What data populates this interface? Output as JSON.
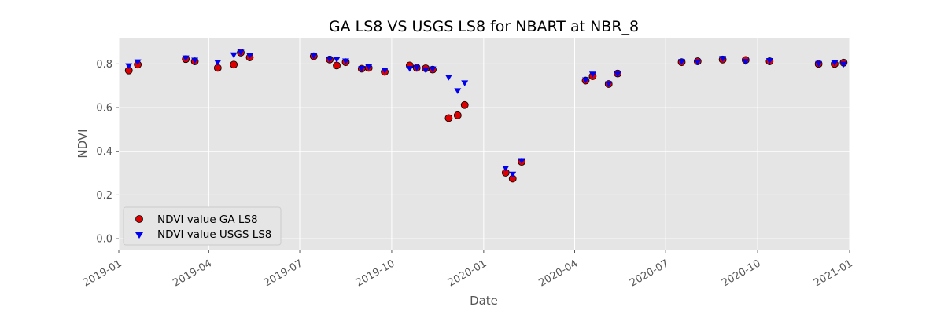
{
  "chart_data": {
    "type": "scatter",
    "title": "GA LS8 VS USGS LS8 for NBART at NBR_8",
    "xlabel": "Date",
    "ylabel": "NDVI",
    "xlim": [
      "2019-01-01",
      "2021-01-01"
    ],
    "ylim": [
      -0.05,
      0.92
    ],
    "x_ticks": [
      "2019-01",
      "2019-04",
      "2019-07",
      "2019-10",
      "2020-01",
      "2020-04",
      "2020-07",
      "2020-10",
      "2021-01"
    ],
    "y_ticks": [
      "0.0",
      "0.2",
      "0.4",
      "0.6",
      "0.8"
    ],
    "grid": true,
    "legend_position": "lower-left",
    "series": [
      {
        "name": "NDVI value GA LS8",
        "marker": "circle",
        "color": "#dd0000",
        "edge_color": "#000000",
        "points": [
          {
            "x": "2019-01-11",
            "y": 0.77
          },
          {
            "x": "2019-01-20",
            "y": 0.797
          },
          {
            "x": "2019-03-09",
            "y": 0.822
          },
          {
            "x": "2019-03-18",
            "y": 0.812
          },
          {
            "x": "2019-04-10",
            "y": 0.782
          },
          {
            "x": "2019-04-26",
            "y": 0.797
          },
          {
            "x": "2019-05-03",
            "y": 0.852
          },
          {
            "x": "2019-05-12",
            "y": 0.83
          },
          {
            "x": "2019-07-15",
            "y": 0.835
          },
          {
            "x": "2019-07-31",
            "y": 0.82
          },
          {
            "x": "2019-08-07",
            "y": 0.793
          },
          {
            "x": "2019-08-16",
            "y": 0.808
          },
          {
            "x": "2019-09-01",
            "y": 0.778
          },
          {
            "x": "2019-09-08",
            "y": 0.782
          },
          {
            "x": "2019-09-24",
            "y": 0.764
          },
          {
            "x": "2019-10-19",
            "y": 0.793
          },
          {
            "x": "2019-10-26",
            "y": 0.782
          },
          {
            "x": "2019-11-04",
            "y": 0.78
          },
          {
            "x": "2019-11-11",
            "y": 0.774
          },
          {
            "x": "2019-11-27",
            "y": 0.552
          },
          {
            "x": "2019-12-06",
            "y": 0.565
          },
          {
            "x": "2019-12-13",
            "y": 0.612
          },
          {
            "x": "2020-01-23",
            "y": 0.302
          },
          {
            "x": "2020-01-30",
            "y": 0.275
          },
          {
            "x": "2020-02-08",
            "y": 0.352
          },
          {
            "x": "2020-04-12",
            "y": 0.724
          },
          {
            "x": "2020-04-19",
            "y": 0.744
          },
          {
            "x": "2020-05-05",
            "y": 0.708
          },
          {
            "x": "2020-05-14",
            "y": 0.756
          },
          {
            "x": "2020-07-17",
            "y": 0.808
          },
          {
            "x": "2020-08-02",
            "y": 0.812
          },
          {
            "x": "2020-08-27",
            "y": 0.82
          },
          {
            "x": "2020-09-19",
            "y": 0.818
          },
          {
            "x": "2020-10-13",
            "y": 0.812
          },
          {
            "x": "2020-12-01",
            "y": 0.8
          },
          {
            "x": "2020-12-17",
            "y": 0.8
          },
          {
            "x": "2020-12-26",
            "y": 0.806
          }
        ]
      },
      {
        "name": "NDVI value USGS LS8",
        "marker": "triangle-down",
        "color": "#0000ee",
        "points": [
          {
            "x": "2019-01-11",
            "y": 0.79
          },
          {
            "x": "2019-01-20",
            "y": 0.808
          },
          {
            "x": "2019-03-09",
            "y": 0.826
          },
          {
            "x": "2019-03-18",
            "y": 0.816
          },
          {
            "x": "2019-04-10",
            "y": 0.806
          },
          {
            "x": "2019-04-26",
            "y": 0.84
          },
          {
            "x": "2019-05-03",
            "y": 0.852
          },
          {
            "x": "2019-05-12",
            "y": 0.838
          },
          {
            "x": "2019-07-15",
            "y": 0.836
          },
          {
            "x": "2019-07-31",
            "y": 0.82
          },
          {
            "x": "2019-08-07",
            "y": 0.82
          },
          {
            "x": "2019-08-16",
            "y": 0.812
          },
          {
            "x": "2019-09-01",
            "y": 0.778
          },
          {
            "x": "2019-09-08",
            "y": 0.786
          },
          {
            "x": "2019-09-24",
            "y": 0.77
          },
          {
            "x": "2019-10-19",
            "y": 0.778
          },
          {
            "x": "2019-10-26",
            "y": 0.782
          },
          {
            "x": "2019-11-04",
            "y": 0.772
          },
          {
            "x": "2019-11-11",
            "y": 0.776
          },
          {
            "x": "2019-11-27",
            "y": 0.738
          },
          {
            "x": "2019-12-06",
            "y": 0.676
          },
          {
            "x": "2019-12-13",
            "y": 0.712
          },
          {
            "x": "2020-01-23",
            "y": 0.322
          },
          {
            "x": "2020-01-30",
            "y": 0.294
          },
          {
            "x": "2020-02-08",
            "y": 0.356
          },
          {
            "x": "2020-04-12",
            "y": 0.726
          },
          {
            "x": "2020-04-19",
            "y": 0.752
          },
          {
            "x": "2020-05-05",
            "y": 0.708
          },
          {
            "x": "2020-05-14",
            "y": 0.752
          },
          {
            "x": "2020-07-17",
            "y": 0.81
          },
          {
            "x": "2020-08-02",
            "y": 0.808
          },
          {
            "x": "2020-08-27",
            "y": 0.824
          },
          {
            "x": "2020-09-19",
            "y": 0.81
          },
          {
            "x": "2020-10-13",
            "y": 0.814
          },
          {
            "x": "2020-12-01",
            "y": 0.8
          },
          {
            "x": "2020-12-17",
            "y": 0.804
          },
          {
            "x": "2020-12-26",
            "y": 0.798
          }
        ]
      }
    ]
  }
}
